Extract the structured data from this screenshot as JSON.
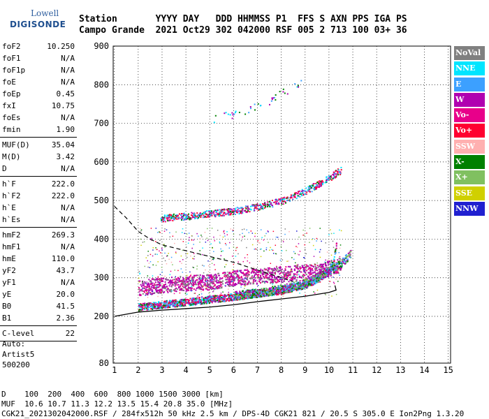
{
  "logo": {
    "line1": "Lowell",
    "line2": "DIGISONDE"
  },
  "header": {
    "line1": "Station       YYYY DAY   DDD HHMMSS P1  FFS S AXN PPS IGA PS",
    "line2": "Campo Grande  2021 Oct29 302 042000 RSF 005 2 713 100 03+ 36"
  },
  "params_group1": [
    {
      "k": "foF2",
      "v": "10.250"
    },
    {
      "k": "foF1",
      "v": "N/A"
    },
    {
      "k": "foF1p",
      "v": "N/A"
    },
    {
      "k": "foE",
      "v": "N/A"
    },
    {
      "k": "foEp",
      "v": "0.45"
    },
    {
      "k": "fxI",
      "v": "10.75"
    },
    {
      "k": "foEs",
      "v": "N/A"
    },
    {
      "k": "fmin",
      "v": "1.90"
    }
  ],
  "params_group2": [
    {
      "k": "MUF(D)",
      "v": "35.04"
    },
    {
      "k": "M(D)",
      "v": "3.42"
    },
    {
      "k": "D",
      "v": "N/A"
    }
  ],
  "params_group3": [
    {
      "k": "h`F",
      "v": "222.0"
    },
    {
      "k": "h`F2",
      "v": "222.0"
    },
    {
      "k": "h`E",
      "v": "N/A"
    },
    {
      "k": "h`Es",
      "v": "N/A"
    }
  ],
  "params_group4": [
    {
      "k": "hmF2",
      "v": "269.3"
    },
    {
      "k": "hmF1",
      "v": "N/A"
    },
    {
      "k": "hmE",
      "v": "110.0"
    },
    {
      "k": "yF2",
      "v": "43.7"
    },
    {
      "k": "yF1",
      "v": "N/A"
    },
    {
      "k": "yE",
      "v": "20.0"
    },
    {
      "k": "B0",
      "v": "41.5"
    },
    {
      "k": "B1",
      "v": "2.36"
    }
  ],
  "params_group5": [
    {
      "k": "C-level",
      "v": "22"
    }
  ],
  "auto": {
    "l1": "Auto:",
    "l2": "Artist5",
    "l3": "500200"
  },
  "footer": {
    "line1": "D    100  200  400  600  800 1000 1500 3000 [km]",
    "line2": "MUF  10.6 10.7 11.3 12.2 13.5 15.4 20.8 35.0 [MHz]",
    "line3": "CGK21_2021302042000.RSF / 284fx512h 50 kHz 2.5 km / DPS-4D CGK21 821 / 20.5 S 305.0 E Ion2Png 1.3.20"
  },
  "legend": [
    {
      "label": "NoVal",
      "color": "#808080"
    },
    {
      "label": "NNE",
      "color": "#00e5ff"
    },
    {
      "label": "E",
      "color": "#3ca0ff"
    },
    {
      "label": "W",
      "color": "#b000b0"
    },
    {
      "label": "Vo-",
      "color": "#e8008a"
    },
    {
      "label": "Vo+",
      "color": "#ff0030"
    },
    {
      "label": "SSW",
      "color": "#ffb0b0"
    },
    {
      "label": "X-",
      "color": "#008000"
    },
    {
      "label": "X+",
      "color": "#80c060"
    },
    {
      "label": "SSE",
      "color": "#d0d000"
    },
    {
      "label": "NNW",
      "color": "#2020d0"
    }
  ],
  "chart_data": {
    "type": "scatter",
    "x_ticks": [
      1,
      2,
      3,
      4,
      5,
      6,
      7,
      8,
      9,
      10,
      11,
      12,
      13,
      14,
      15
    ],
    "y_ticks": [
      80,
      200,
      300,
      400,
      500,
      600,
      700,
      800,
      900
    ],
    "xlim": [
      0.95,
      15.1
    ],
    "y_axis_segments": [
      [
        80,
        200
      ],
      [
        200,
        900
      ]
    ],
    "grid": true,
    "legend_position": "right",
    "profile_curve": {
      "x": [
        1.0,
        2.0,
        3.0,
        4.0,
        5.0,
        6.0,
        7.0,
        8.0,
        9.0,
        10.0,
        10.3,
        10.25
      ],
      "y": [
        200,
        211,
        216,
        220,
        224,
        230,
        238,
        245,
        252,
        262,
        268,
        280
      ]
    },
    "dashed_curve": {
      "x": [
        1.0,
        1.5,
        2.0,
        2.5,
        3.0,
        4.0,
        5.0,
        6.0,
        7.0,
        8.0,
        8.5
      ],
      "y": [
        485,
        455,
        420,
        400,
        385,
        370,
        355,
        340,
        320,
        300,
        290
      ]
    },
    "o_trace": {
      "x": [
        2,
        3,
        4,
        5,
        6,
        7,
        8,
        9,
        9.5,
        10,
        10.15,
        10.25,
        10.3
      ],
      "y": [
        225,
        232,
        238,
        245,
        252,
        260,
        268,
        283,
        297,
        320,
        340,
        370,
        390
      ]
    },
    "x_trace": {
      "x": [
        6,
        7,
        8,
        9,
        9.5,
        10,
        10.4,
        10.7,
        10.9
      ],
      "y": [
        255,
        262,
        272,
        288,
        300,
        320,
        335,
        350,
        365
      ]
    },
    "upper_band": {
      "x": [
        2,
        3,
        4,
        5,
        6,
        7,
        8,
        9,
        10,
        10.5
      ],
      "y": [
        275,
        282,
        287,
        290,
        300,
        305,
        310,
        315,
        325,
        335
      ]
    },
    "multi_trace": {
      "x": [
        2.9,
        4,
        5,
        6,
        7,
        8,
        9,
        10,
        10.5
      ],
      "y": [
        455,
        460,
        467,
        474,
        485,
        500,
        525,
        560,
        580
      ]
    },
    "sparse_high": {
      "x": [
        5.0,
        6.0,
        7.0,
        7.5,
        8.0,
        8.5,
        9.0
      ],
      "y": [
        710,
        725,
        745,
        760,
        780,
        795,
        815
      ]
    }
  }
}
